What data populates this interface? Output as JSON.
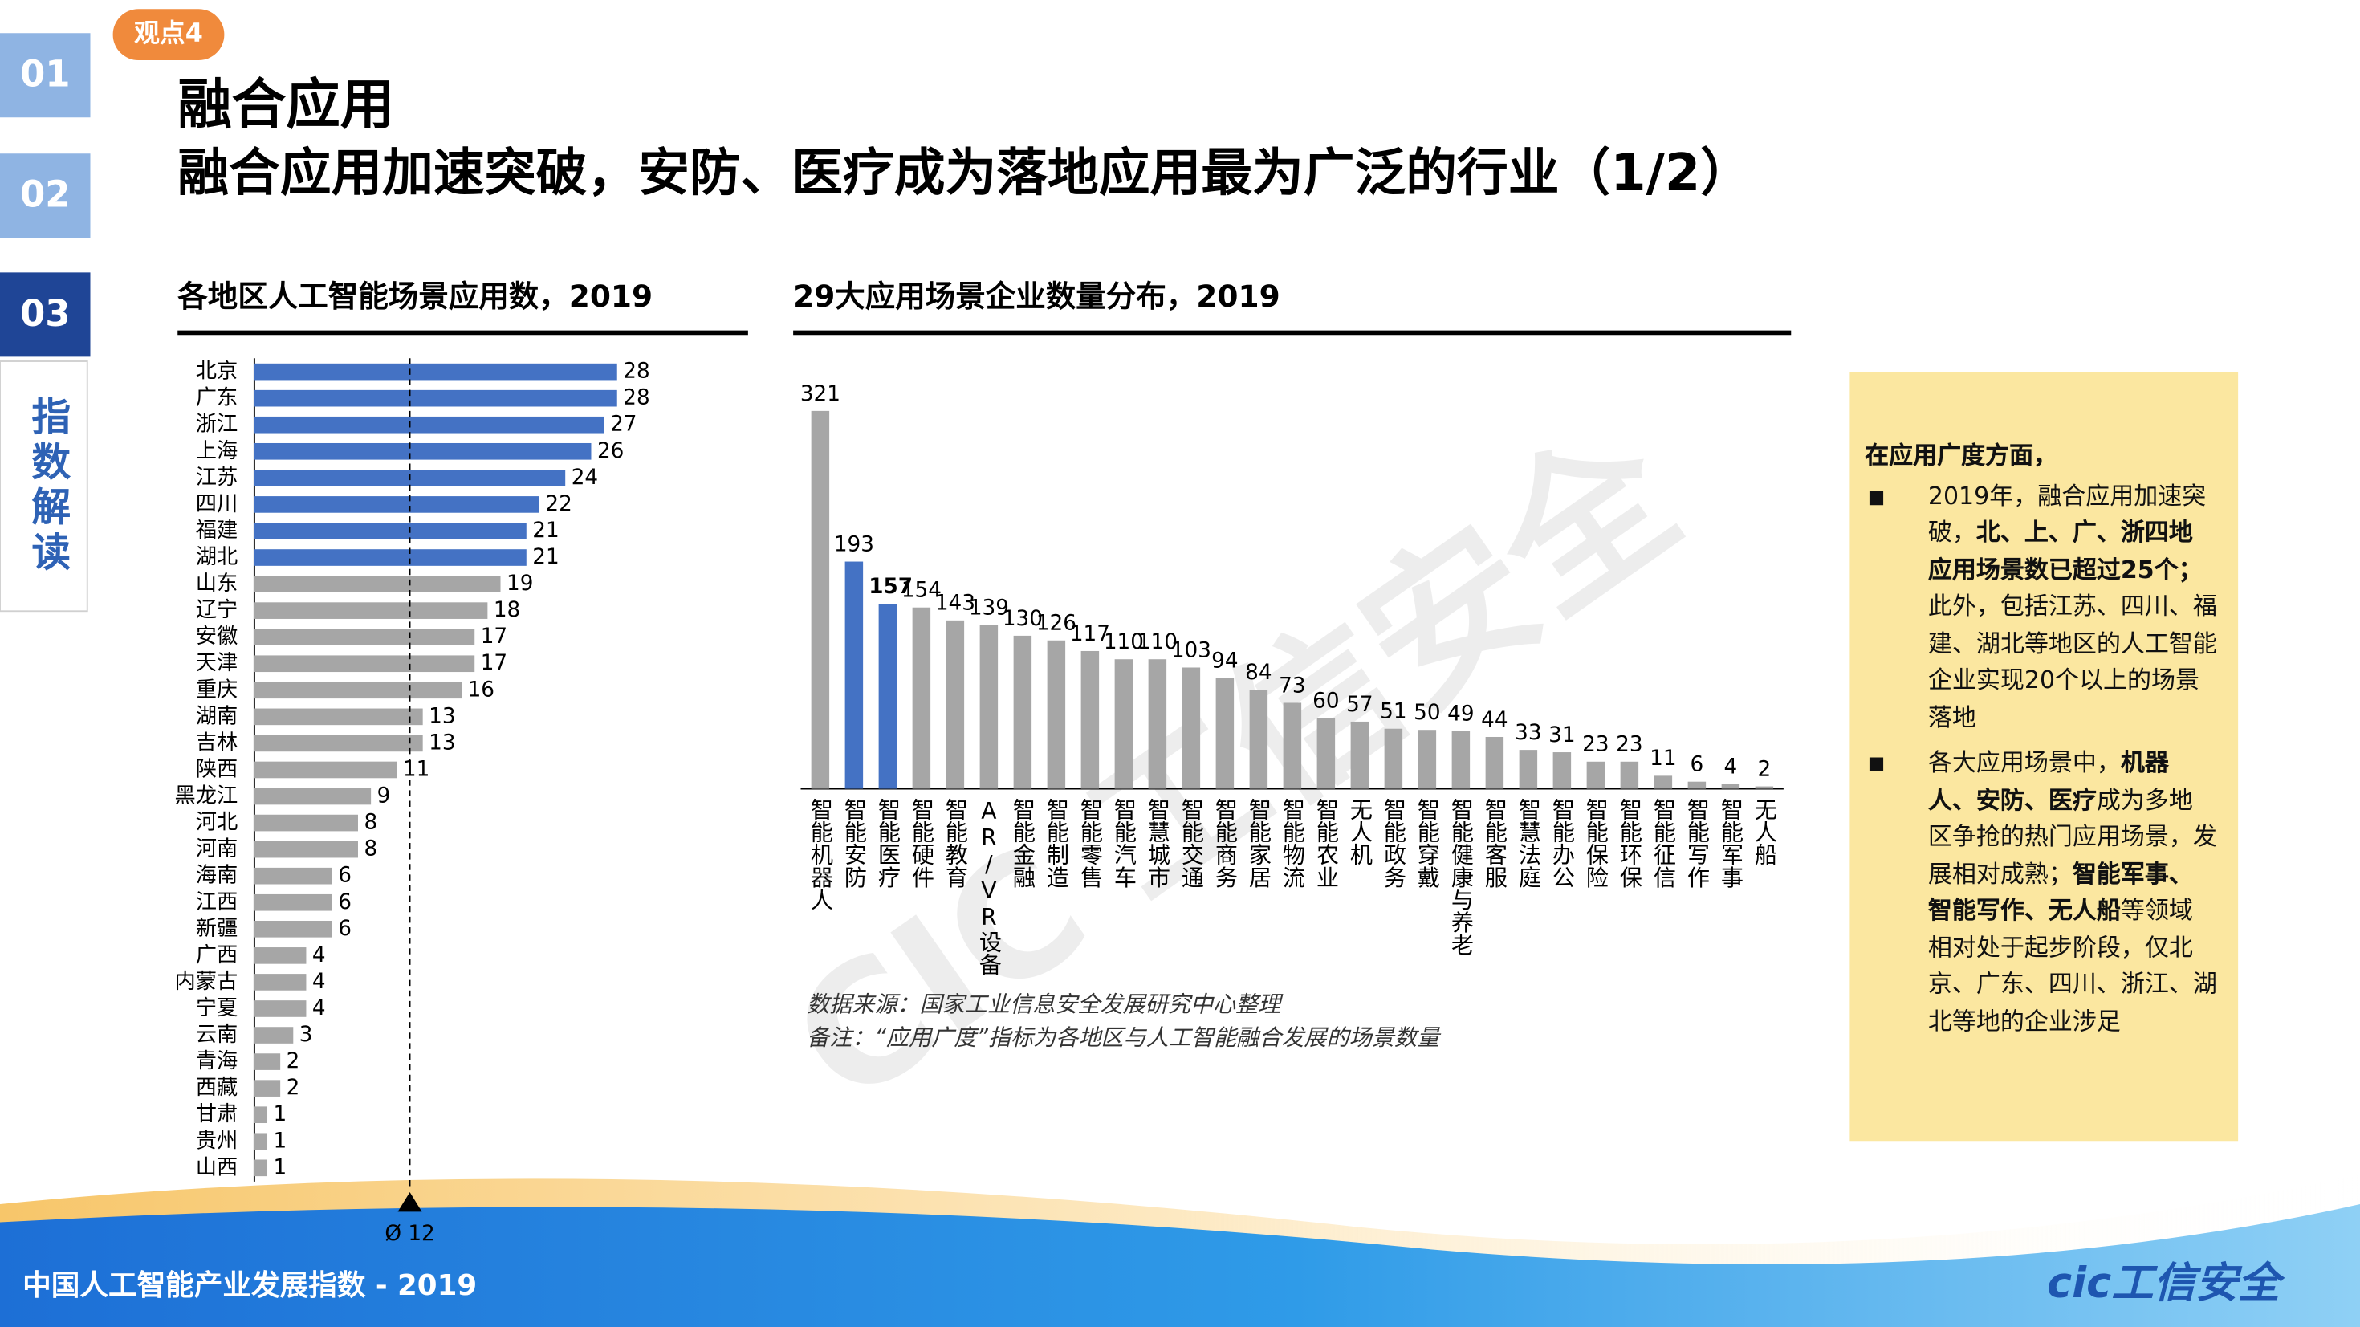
{
  "badge": "观点4",
  "nav": [
    "01",
    "02",
    "03"
  ],
  "nav_section": "指数解读",
  "title": "融合应用",
  "subtitle": "融合应用加速突破，安防、医疗成为落地应用最为广泛的行业（1/2）",
  "chart_data": [
    {
      "type": "hbar",
      "title": "各地区人工智能场景应用数，2019",
      "categories": [
        "北京",
        "广东",
        "浙江",
        "上海",
        "江苏",
        "四川",
        "福建",
        "湖北",
        "山东",
        "辽宁",
        "安徽",
        "天津",
        "重庆",
        "湖南",
        "吉林",
        "陕西",
        "黑龙江",
        "河北",
        "河南",
        "海南",
        "江西",
        "新疆",
        "广西",
        "内蒙古",
        "宁夏",
        "云南",
        "青海",
        "西藏",
        "甘肃",
        "贵州",
        "山西"
      ],
      "values": [
        28,
        28,
        27,
        26,
        24,
        22,
        21,
        21,
        19,
        18,
        17,
        17,
        16,
        13,
        13,
        11,
        9,
        8,
        8,
        6,
        6,
        6,
        4,
        4,
        4,
        3,
        2,
        2,
        1,
        1,
        1
      ],
      "colors": [
        "#4472c4",
        "#4472c4",
        "#4472c4",
        "#4472c4",
        "#4472c4",
        "#4472c4",
        "#4472c4",
        "#4472c4",
        "#a6a6a6",
        "#a6a6a6",
        "#a6a6a6",
        "#a6a6a6",
        "#a6a6a6",
        "#a6a6a6",
        "#a6a6a6",
        "#a6a6a6",
        "#a6a6a6",
        "#a6a6a6",
        "#a6a6a6",
        "#a6a6a6",
        "#a6a6a6",
        "#a6a6a6",
        "#a6a6a6",
        "#a6a6a6",
        "#a6a6a6",
        "#a6a6a6",
        "#a6a6a6",
        "#a6a6a6",
        "#a6a6a6",
        "#a6a6a6",
        "#a6a6a6"
      ],
      "xlim": [
        0,
        28
      ],
      "average": {
        "value": 12,
        "label": "Ø 12"
      }
    },
    {
      "type": "bar",
      "title": "29大应用场景企业数量分布，2019",
      "categories": [
        "智能机器人",
        "智能安防",
        "智能医疗",
        "智能硬件",
        "智能教育",
        "AR/VR设备",
        "智能金融",
        "智能制造",
        "智能零售",
        "智能汽车",
        "智慧城市",
        "智能交通",
        "智能商务",
        "智能家居",
        "智能物流",
        "智能农业",
        "无人机",
        "智能政务",
        "智能穿戴",
        "智能健康与养老",
        "智能客服",
        "智慧法庭",
        "智能办公",
        "智能保险",
        "智能环保",
        "智能征信",
        "智能写作",
        "智能军事",
        "无人船"
      ],
      "values": [
        321,
        193,
        157,
        154,
        143,
        139,
        130,
        126,
        117,
        110,
        110,
        103,
        94,
        84,
        73,
        60,
        57,
        51,
        50,
        49,
        44,
        33,
        31,
        23,
        23,
        11,
        6,
        4,
        2
      ],
      "colors": [
        "#a6a6a6",
        "#4472c4",
        "#4472c4",
        "#a6a6a6",
        "#a6a6a6",
        "#a6a6a6",
        "#a6a6a6",
        "#a6a6a6",
        "#a6a6a6",
        "#a6a6a6",
        "#a6a6a6",
        "#a6a6a6",
        "#a6a6a6",
        "#a6a6a6",
        "#a6a6a6",
        "#a6a6a6",
        "#a6a6a6",
        "#a6a6a6",
        "#a6a6a6",
        "#a6a6a6",
        "#a6a6a6",
        "#a6a6a6",
        "#a6a6a6",
        "#a6a6a6",
        "#a6a6a6",
        "#a6a6a6",
        "#a6a6a6",
        "#a6a6a6",
        "#a6a6a6"
      ],
      "ylim": [
        0,
        321
      ],
      "notes": [
        "数据来源：国家工业信息安全发展研究中心整理",
        "备注：“应用广度”指标为各地区与人工智能融合发展的场景数量"
      ]
    }
  ],
  "insight": {
    "heading": "在应用广度方面，",
    "bullets": [
      [
        {
          "text": "2019年，融合应用加速突破，",
          "bold": false
        },
        {
          "text": "北、上、广、浙四地应用场景数已超过25个；",
          "bold": true
        },
        {
          "text": "此外，包括江苏、四川、福建、湖北等地区的人工智能企业实现20个以上的场景落地",
          "bold": false
        }
      ],
      [
        {
          "text": "各大应用场景中，",
          "bold": false
        },
        {
          "text": "机器人、安防、医疗",
          "bold": true
        },
        {
          "text": "成为多地区争抢的热门应用场景，发展相对成熟；",
          "bold": false
        },
        {
          "text": "智能军事、智能写作、无人船",
          "bold": true
        },
        {
          "text": "等领域相对处于起步阶段，仅北京、广东、四川、浙江、湖北等地的企业涉足",
          "bold": false
        }
      ]
    ]
  },
  "watermark": "CIC 工信安全",
  "footer": "中国人工智能产业发展指数 - 2019",
  "logo": "cic工信安全"
}
